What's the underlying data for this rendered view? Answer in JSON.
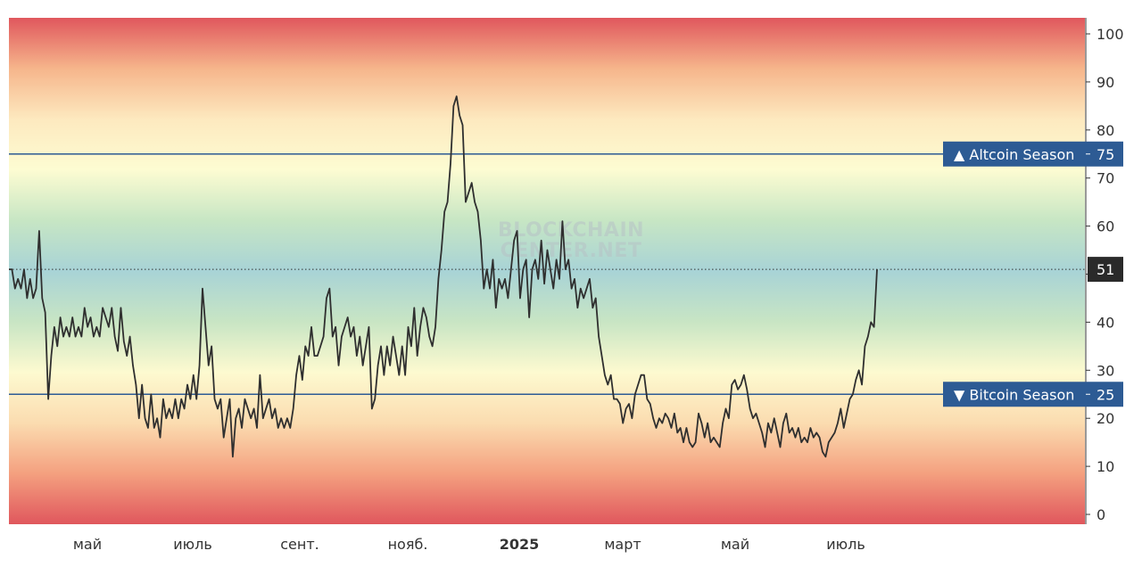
{
  "colors": {
    "line": "#2f2f2f",
    "season_line": "#2d5b94",
    "tag_bg": "#2d5b94",
    "current_tag_bg": "#2a2a2a",
    "gradient": [
      "#e0575d",
      "#f6b58b",
      "#fde9bf",
      "#fdfcd2",
      "#c7e6c4",
      "#a8d3d6",
      "#c8e5c4",
      "#fdfad0",
      "#fbdcb0",
      "#f4a07f",
      "#e0575d"
    ]
  },
  "watermark": {
    "line1": "BLOCKCHAIN",
    "line2": "CENTER.NET"
  },
  "chart_data": {
    "type": "line",
    "y_axis": {
      "range": [
        0,
        100
      ],
      "ticks": [
        0,
        10,
        20,
        30,
        40,
        50,
        60,
        70,
        80,
        90,
        100
      ],
      "position": "right"
    },
    "x_ticks": [
      {
        "label": "май",
        "bold": false
      },
      {
        "label": "июль",
        "bold": false
      },
      {
        "label": "сент.",
        "bold": false
      },
      {
        "label": "нояб.",
        "bold": false
      },
      {
        "label": "2025",
        "bold": true
      },
      {
        "label": "март",
        "bold": false
      },
      {
        "label": "май",
        "bold": false
      },
      {
        "label": "июль",
        "bold": false
      }
    ],
    "reference_lines": [
      {
        "label": "▲ Altcoin Season",
        "value": 75
      },
      {
        "label": "▼ Bitcoin Season",
        "value": 25
      }
    ],
    "current_value": 51,
    "series": [
      {
        "values": [
          51,
          51,
          47,
          49,
          47,
          51,
          45,
          49,
          45,
          47,
          59,
          45,
          42,
          24,
          33,
          39,
          35,
          41,
          37,
          39,
          37,
          41,
          37,
          39,
          37,
          43,
          39,
          41,
          37,
          39,
          37,
          43,
          41,
          39,
          43,
          37,
          34,
          43,
          36,
          33,
          37,
          31,
          27,
          20,
          27,
          20,
          18,
          25,
          18,
          20,
          16,
          24,
          20,
          22,
          20,
          24,
          20,
          24,
          22,
          27,
          24,
          29,
          24,
          31,
          47,
          39,
          31,
          35,
          24,
          22,
          24,
          16,
          20,
          24,
          12,
          20,
          22,
          18,
          24,
          22,
          20,
          22,
          18,
          29,
          20,
          22,
          24,
          20,
          22,
          18,
          20,
          18,
          20,
          18,
          22,
          29,
          33,
          28,
          35,
          33,
          39,
          33,
          33,
          35,
          37,
          45,
          47,
          37,
          39,
          31,
          37,
          39,
          41,
          37,
          39,
          33,
          37,
          31,
          35,
          39,
          22,
          24,
          31,
          35,
          29,
          35,
          31,
          37,
          33,
          29,
          35,
          29,
          39,
          35,
          43,
          33,
          39,
          43,
          41,
          37,
          35,
          39,
          49,
          55,
          63,
          65,
          73,
          85,
          87,
          83,
          81,
          65,
          67,
          69,
          65,
          63,
          57,
          47,
          51,
          47,
          53,
          43,
          49,
          47,
          49,
          45,
          51,
          57,
          59,
          45,
          51,
          53,
          41,
          51,
          53,
          49,
          57,
          48,
          55,
          51,
          47,
          53,
          49,
          61,
          51,
          53,
          47,
          49,
          43,
          47,
          45,
          47,
          49,
          43,
          45,
          37,
          33,
          29,
          27,
          29,
          24,
          24,
          23,
          19,
          22,
          23,
          20,
          25,
          27,
          29,
          29,
          24,
          23,
          20,
          18,
          20,
          19,
          21,
          20,
          18,
          21,
          17,
          18,
          15,
          18,
          15,
          14,
          15,
          21,
          19,
          16,
          19,
          15,
          16,
          15,
          14,
          19,
          22,
          20,
          27,
          28,
          26,
          27,
          29,
          26,
          22,
          20,
          21,
          19,
          17,
          14,
          19,
          17,
          20,
          17,
          14,
          19,
          21,
          17,
          18,
          16,
          18,
          15,
          16,
          15,
          18,
          16,
          17,
          16,
          13,
          12,
          15,
          16,
          17,
          19,
          22,
          18,
          21,
          24,
          25,
          28,
          30,
          27,
          35,
          37,
          40,
          39,
          51
        ]
      }
    ]
  }
}
